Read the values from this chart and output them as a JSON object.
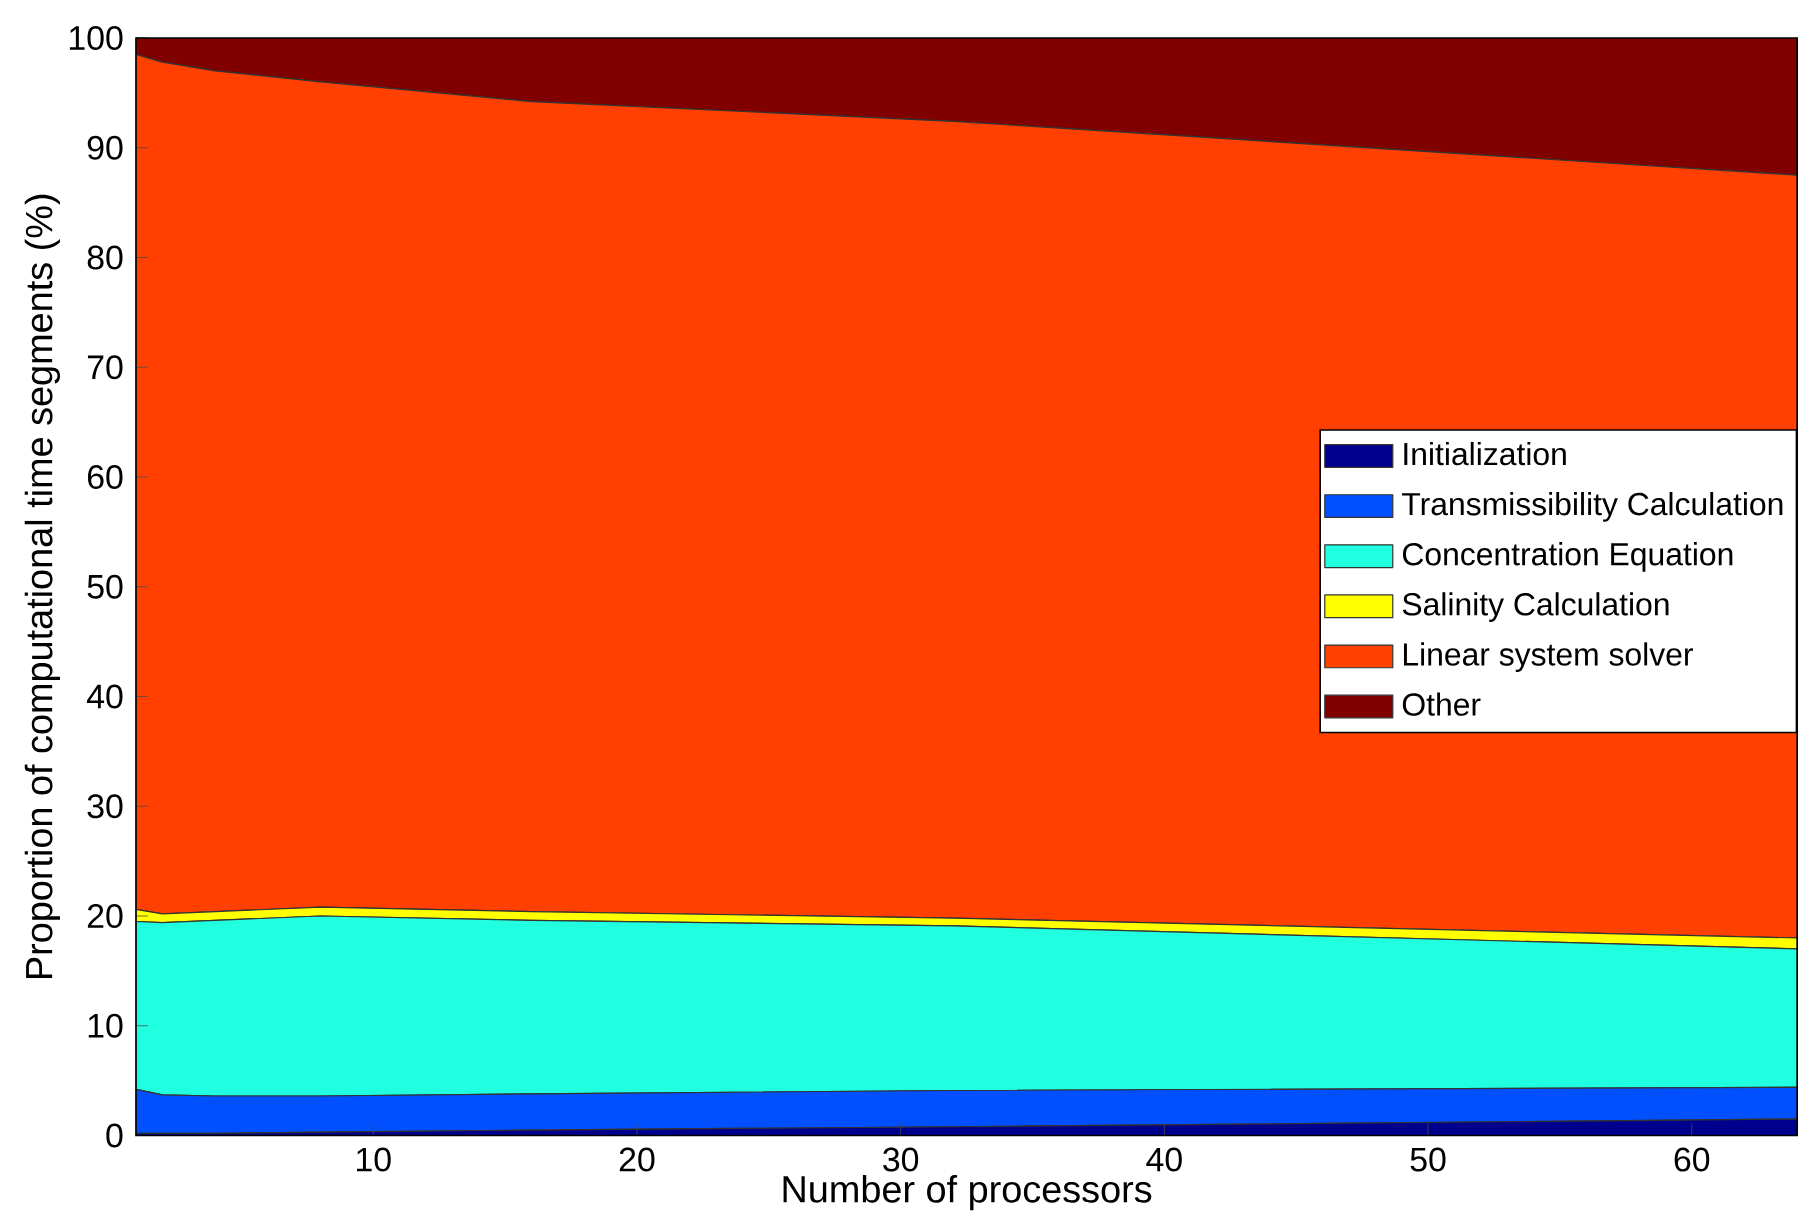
{
  "chart_data": {
    "type": "area",
    "stacked": true,
    "xlabel": "Number of processors",
    "ylabel": "Proportion of computational time segments (%)",
    "x": [
      1,
      2,
      4,
      8,
      16,
      32,
      64
    ],
    "series": [
      {
        "name": "Initialization",
        "color": "#00008f",
        "values": [
          0.2,
          0.2,
          0.2,
          0.3,
          0.5,
          0.8,
          1.5
        ]
      },
      {
        "name": "Transmissibility Calculation",
        "color": "#0050ff",
        "values": [
          4.0,
          3.5,
          3.4,
          3.3,
          3.3,
          3.3,
          2.9
        ]
      },
      {
        "name": "Concentration Equation",
        "color": "#20ffe0",
        "values": [
          15.3,
          15.7,
          16.0,
          16.4,
          15.8,
          15.0,
          12.6
        ]
      },
      {
        "name": "Salinity Calculation",
        "color": "#ffff00",
        "values": [
          1.1,
          0.8,
          0.8,
          0.8,
          0.8,
          0.7,
          1.0
        ]
      },
      {
        "name": "Linear system solver",
        "color": "#ff4000",
        "values": [
          77.9,
          77.6,
          76.6,
          75.2,
          73.8,
          72.6,
          69.5
        ]
      },
      {
        "name": "Other",
        "color": "#800000",
        "values": [
          1.5,
          2.2,
          3.0,
          4.0,
          5.8,
          7.6,
          12.5
        ]
      }
    ],
    "xlim": [
      1,
      64
    ],
    "ylim": [
      0,
      100
    ],
    "xticks": [
      10,
      20,
      30,
      40,
      50,
      60
    ],
    "yticks": [
      0,
      10,
      20,
      30,
      40,
      50,
      60,
      70,
      80,
      90,
      100
    ],
    "legend": "right"
  }
}
